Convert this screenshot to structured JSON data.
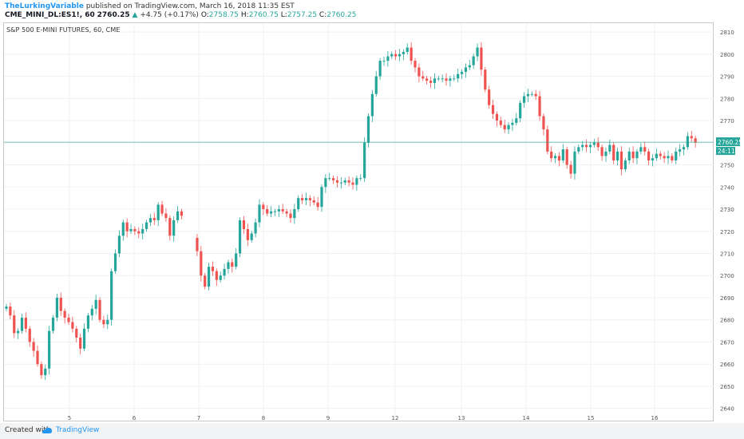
{
  "header": {
    "author": "TheLurkingVariable",
    "published_text": "published on TradingView.com, March 16, 2018 11:35 EST",
    "symbol": "CME_MINI_DL:ES1!, 60",
    "price": "2760.25",
    "change_arrow": "▲",
    "change": "+4.75 (+0.17%)",
    "o_label": "O:",
    "o_value": "2758.75",
    "h_label": "H:",
    "h_value": "2760.75",
    "l_label": "L:",
    "l_value": "2757.25",
    "c_label": "C:",
    "c_value": "2760.25"
  },
  "chart_title": "S&P 500 E-MINI FUTURES, 60, CME",
  "last_price_label": "2760.25",
  "countdown_label": "24:11",
  "footer": {
    "created_with": "Created with",
    "brand": "TradingView"
  },
  "colors": {
    "up": "#26a69a",
    "down": "#ef5350",
    "grid": "#eef0f3",
    "price_line": "#26a69a"
  },
  "chart_data": {
    "type": "candlestick",
    "title": "S&P 500 E-MINI FUTURES, 60, CME",
    "x_tick_labels": [
      "5",
      "6",
      "7",
      "8",
      "9",
      "12",
      "13",
      "14",
      "15",
      "16"
    ],
    "y_ticks": [
      2640,
      2650,
      2660,
      2670,
      2680,
      2690,
      2700,
      2710,
      2720,
      2730,
      2740,
      2750,
      2760,
      2770,
      2780,
      2790,
      2800,
      2810
    ],
    "ylim": [
      2637,
      2814
    ],
    "grid": true,
    "last_price": 2760.25,
    "note": "Approximate hourly closes read from chart, one entry per candle",
    "closes": [
      2686,
      2682,
      2674,
      2675,
      2681,
      2676,
      2670,
      2666,
      2660,
      2655,
      2658,
      2675,
      2681,
      2690,
      2684,
      2681,
      2679,
      2676,
      2672,
      2667,
      2676,
      2682,
      2685,
      2689,
      2680,
      2678,
      2680,
      2702,
      2710,
      2718,
      2724,
      2720,
      2721,
      2720,
      2719,
      2721,
      2724,
      2726,
      2725,
      2732,
      2728,
      2726,
      2718,
      2725,
      2729,
      2727,
      2711,
      2700,
      2695,
      2704,
      2702,
      2698,
      2700,
      2703,
      2706,
      2704,
      2710,
      2725,
      2721,
      2716,
      2719,
      2724,
      2732,
      2730,
      2728,
      2729,
      2729,
      2730,
      2729,
      2728,
      2726,
      2730,
      2735,
      2734,
      2735,
      2734,
      2733,
      2731,
      2740,
      2744,
      2744,
      2743,
      2742,
      2742,
      2743,
      2742,
      2741,
      2744,
      2744,
      2760,
      2772,
      2782,
      2790,
      2797,
      2797,
      2799,
      2800,
      2799,
      2800,
      2801,
      2803,
      2797,
      2794,
      2790,
      2789,
      2788,
      2787,
      2789,
      2789,
      2789,
      2788,
      2789,
      2789,
      2791,
      2792,
      2794,
      2795,
      2799,
      2803,
      2793,
      2784,
      2777,
      2773,
      2770,
      2768,
      2766,
      2768,
      2769,
      2771,
      2778,
      2781,
      2782,
      2782,
      2781,
      2772,
      2766,
      2756,
      2753,
      2754,
      2752,
      2757,
      2750,
      2746,
      2756,
      2758,
      2759,
      2758,
      2759,
      2760,
      2758,
      2754,
      2756,
      2759,
      2752,
      2756,
      2748,
      2752,
      2756,
      2753,
      2756,
      2758,
      2756,
      2752,
      2753,
      2755,
      2754,
      2753,
      2754,
      2752,
      2756,
      2757,
      2758,
      2763,
      2762,
      2760
    ]
  }
}
